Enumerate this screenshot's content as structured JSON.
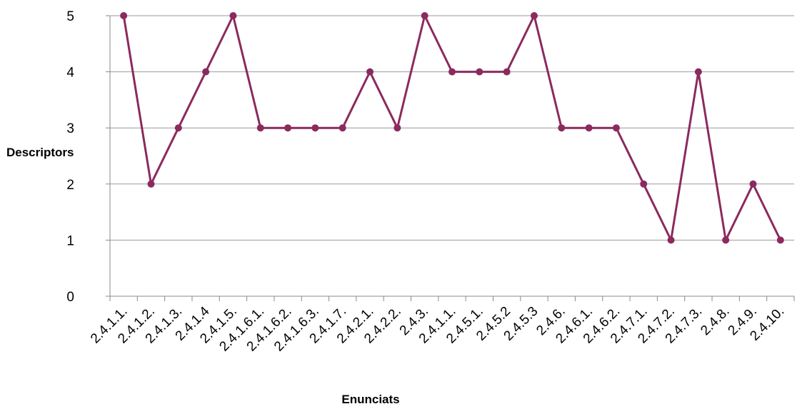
{
  "chart_data": {
    "type": "line",
    "title": "",
    "xlabel": "Enunciats",
    "ylabel": "Descriptors",
    "ylim": [
      0,
      5
    ],
    "yticks": [
      0,
      1,
      2,
      3,
      4,
      5
    ],
    "grid": true,
    "legend": "none",
    "categories": [
      "2.4.1.1.",
      "2.4.1.2.",
      "2.4.1.3.",
      "2.4.1.4",
      "2.4.1.5.",
      "2.4.1.6.1.",
      "2.4.1.6.2.",
      "2.4.1.6.3.",
      "2.4.1.7.",
      "2.4.2.1.",
      "2.4.2.2.",
      "2.4.3.",
      "2.4.1.1.",
      "2.4.5.1.",
      "2.4.5.2",
      "2.4.5.3",
      "2.4.6.",
      "2.4.6.1.",
      "2.4.6.2.",
      "2.4.7.1.",
      "2.4.7.2.",
      "2.4.7.3.",
      "2.4.8.",
      "2.4.9.",
      "2.4.10."
    ],
    "series": [
      {
        "values": [
          5,
          2,
          3,
          4,
          5,
          3,
          3,
          3,
          3,
          4,
          3,
          5,
          4,
          4,
          4,
          5,
          3,
          3,
          3,
          2,
          1,
          4,
          1,
          2,
          1
        ],
        "color": "#8b2a5e"
      }
    ],
    "gridline_color": "#9a9a9a",
    "axis_color": "#8a8a8a"
  }
}
